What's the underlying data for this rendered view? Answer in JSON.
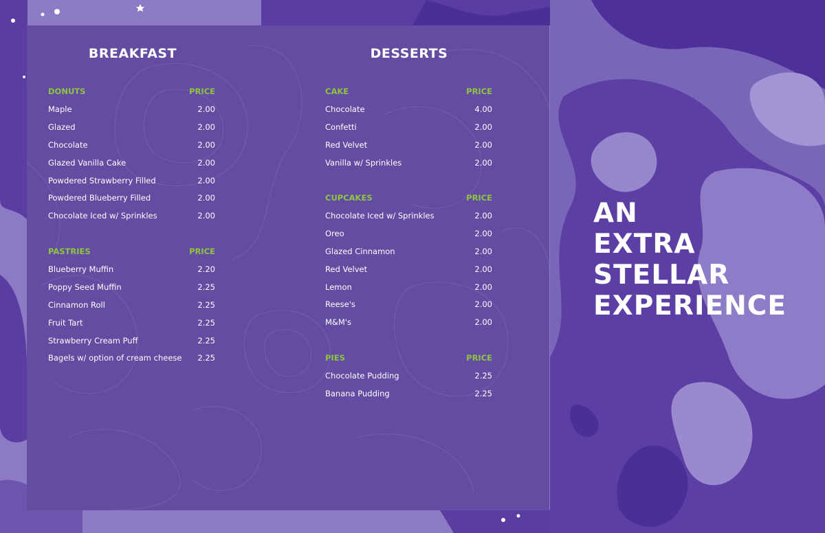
{
  "colors": {
    "panel": "#634ca2",
    "accent": "#8dc63f",
    "text": "#ffffff",
    "bg_light": "#8c7bc4",
    "bg_dark": "#4a2f96"
  },
  "columns": [
    {
      "title": "BREAKFAST",
      "sections": [
        {
          "name": "DONUTS",
          "price_label": "PRICE",
          "items": [
            {
              "name": "Maple",
              "price": "2.00"
            },
            {
              "name": "Glazed",
              "price": "2.00"
            },
            {
              "name": "Chocolate",
              "price": "2.00"
            },
            {
              "name": "Glazed Vanilla Cake",
              "price": "2.00"
            },
            {
              "name": "Powdered Strawberry Filled",
              "price": "2.00"
            },
            {
              "name": "Powdered Blueberry Filled",
              "price": "2.00"
            },
            {
              "name": "Chocolate Iced w/ Sprinkles",
              "price": "2.00"
            }
          ]
        },
        {
          "name": "PASTRIES",
          "price_label": "PRICE",
          "items": [
            {
              "name": "Blueberry Muffin",
              "price": "2.20"
            },
            {
              "name": "Poppy Seed Muffin",
              "price": "2.25"
            },
            {
              "name": "Cinnamon Roll",
              "price": "2.25"
            },
            {
              "name": "Fruit Tart",
              "price": "2.25"
            },
            {
              "name": "Strawberry Cream Puff",
              "price": "2.25"
            },
            {
              "name": "Bagels w/ option of cream cheese",
              "price": "2.25"
            }
          ]
        }
      ]
    },
    {
      "title": "DESSERTS",
      "sections": [
        {
          "name": "CAKE",
          "price_label": "PRICE",
          "items": [
            {
              "name": "Chocolate",
              "price": "4.00"
            },
            {
              "name": "Confetti",
              "price": "2.00"
            },
            {
              "name": "Red Velvet",
              "price": "2.00"
            },
            {
              "name": "Vanilla w/ Sprinkles",
              "price": "2.00"
            }
          ]
        },
        {
          "name": "CUPCAKES",
          "price_label": "PRICE",
          "items": [
            {
              "name": "Chocolate Iced w/ Sprinkles",
              "price": "2.00"
            },
            {
              "name": "Oreo",
              "price": "2.00"
            },
            {
              "name": "Glazed Cinnamon",
              "price": "2.00"
            },
            {
              "name": "Red Velvet",
              "price": "2.00"
            },
            {
              "name": "Lemon",
              "price": "2.00"
            },
            {
              "name": "Reese's",
              "price": "2.00"
            },
            {
              "name": "M&M's",
              "price": "2.00"
            }
          ]
        },
        {
          "name": "PIES",
          "price_label": "PRICE",
          "items": [
            {
              "name": "Chocolate Pudding",
              "price": "2.25"
            },
            {
              "name": "Banana Pudding",
              "price": "2.25"
            }
          ]
        }
      ]
    }
  ],
  "tagline": [
    "AN",
    "EXTRA",
    "STELLAR",
    "EXPERIENCE"
  ]
}
